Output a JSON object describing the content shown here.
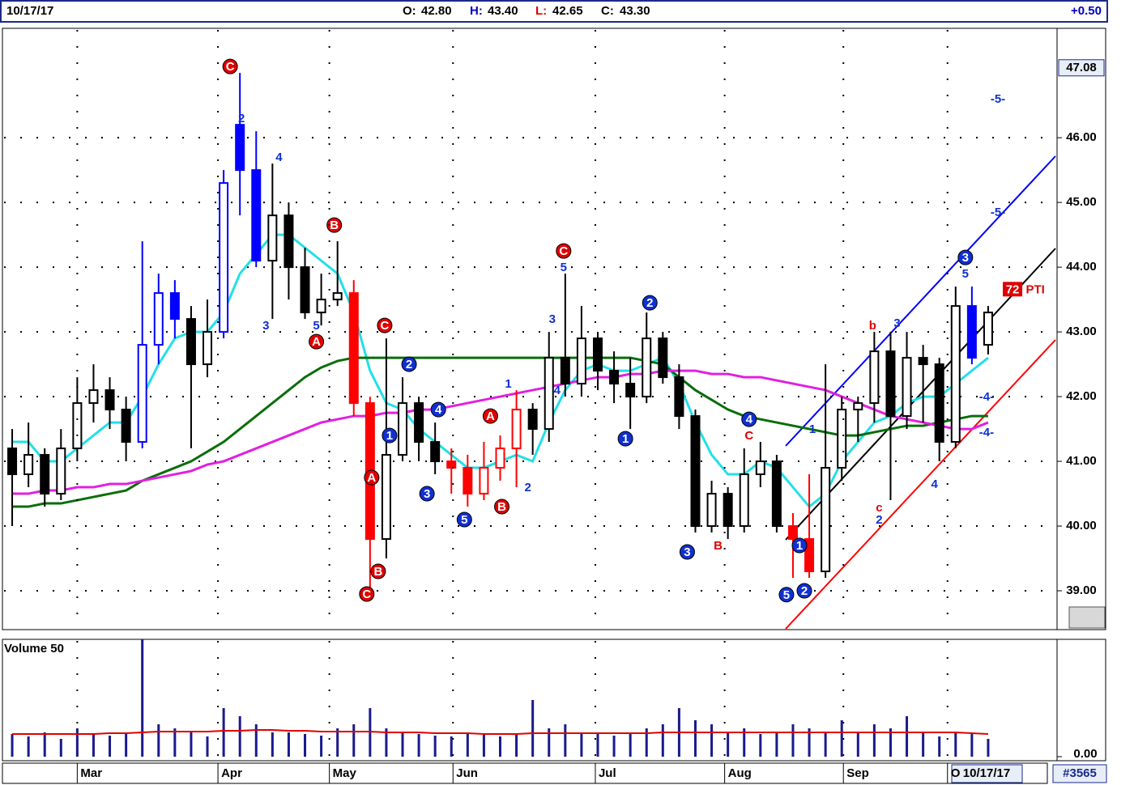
{
  "header": {
    "date": "10/17/17",
    "items": [
      {
        "label": "O:",
        "value": "42.80"
      },
      {
        "label": "H:",
        "value": "43.40"
      },
      {
        "label": "L:",
        "value": "42.65"
      },
      {
        "label": "C:",
        "value": "43.30"
      }
    ],
    "change": "+0.50"
  },
  "footer": {
    "date": "10/17/17",
    "count": "#3565"
  },
  "chart_data": [
    {
      "type": "candlestick",
      "xlim": [
        -0.6,
        60.6
      ],
      "ylim": [
        38.4,
        47.69
      ],
      "yticks": [
        {
          "value": 39,
          "label": "39.00"
        },
        {
          "value": 40,
          "label": "40.00"
        },
        {
          "value": 41,
          "label": "41.00"
        },
        {
          "value": 42,
          "label": "42.00"
        },
        {
          "value": 43,
          "label": "43.00"
        },
        {
          "value": 44,
          "label": "44.00"
        },
        {
          "value": 45,
          "label": "45.00"
        },
        {
          "value": 46,
          "label": "46.00"
        }
      ],
      "price_marker": {
        "value": 47.08,
        "label": "47.08"
      },
      "grid": true,
      "open": [
        41.2,
        40.8,
        41.1,
        40.5,
        41.2,
        41.9,
        42.1,
        41.8,
        41.3,
        42.8,
        43.6,
        43.2,
        42.5,
        43.0,
        46.2,
        45.5,
        44.1,
        44.8,
        44.0,
        43.3,
        43.5,
        43.6,
        41.9,
        39.8,
        41.1,
        41.9,
        41.3,
        41.0,
        40.9,
        40.5,
        40.9,
        41.2,
        41.8,
        41.5,
        42.6,
        42.2,
        42.9,
        42.4,
        42.2,
        42.0,
        42.9,
        42.3,
        41.7,
        40.0,
        40.5,
        40.0,
        40.8,
        41.0,
        40.0,
        39.8,
        39.3,
        40.9,
        41.8,
        41.9,
        42.7,
        41.7,
        42.6,
        42.5,
        41.3,
        43.4,
        42.8
      ],
      "high": [
        41.5,
        41.6,
        41.2,
        41.5,
        42.3,
        42.5,
        42.3,
        42.0,
        44.4,
        43.9,
        43.8,
        43.4,
        43.5,
        45.5,
        47.0,
        46.1,
        45.6,
        45.0,
        44.3,
        43.9,
        44.4,
        43.8,
        42.0,
        42.9,
        42.3,
        42.0,
        41.6,
        41.2,
        41.1,
        41.3,
        41.4,
        42.1,
        41.9,
        43.0,
        43.9,
        43.4,
        43.0,
        42.7,
        42.6,
        43.3,
        43.0,
        42.5,
        41.8,
        40.7,
        40.6,
        41.2,
        41.3,
        41.1,
        40.2,
        40.8,
        42.5,
        42.0,
        42.0,
        43.0,
        43.0,
        43.0,
        42.8,
        42.6,
        43.7,
        43.7,
        43.4
      ],
      "low": [
        40.0,
        40.6,
        40.3,
        40.4,
        41.0,
        41.6,
        41.5,
        41.0,
        41.2,
        42.5,
        42.9,
        41.2,
        42.3,
        42.9,
        44.8,
        44.0,
        43.2,
        43.5,
        43.2,
        43.1,
        43.4,
        41.7,
        39.0,
        39.5,
        41.0,
        41.0,
        40.8,
        40.5,
        40.3,
        40.4,
        40.7,
        40.6,
        41.1,
        41.3,
        42.0,
        42.0,
        42.1,
        41.9,
        41.5,
        41.9,
        42.2,
        41.5,
        39.9,
        39.9,
        39.8,
        39.9,
        40.6,
        39.9,
        39.2,
        39.2,
        39.2,
        40.7,
        41.3,
        41.6,
        40.4,
        41.5,
        41.6,
        41.0,
        41.2,
        42.5,
        42.65
      ],
      "close": [
        40.8,
        41.1,
        40.5,
        41.2,
        41.9,
        42.1,
        41.8,
        41.3,
        42.8,
        43.6,
        43.2,
        42.5,
        43.0,
        45.3,
        45.5,
        44.1,
        44.8,
        44.0,
        43.3,
        43.5,
        43.6,
        41.9,
        39.8,
        41.1,
        41.9,
        41.3,
        41.0,
        40.9,
        40.5,
        40.9,
        41.2,
        41.8,
        41.5,
        42.6,
        42.2,
        42.9,
        42.4,
        42.2,
        42.0,
        42.9,
        42.3,
        41.7,
        40.0,
        40.5,
        40.0,
        40.8,
        41.0,
        40.0,
        39.8,
        39.3,
        40.9,
        41.8,
        41.9,
        42.7,
        41.7,
        42.6,
        42.5,
        41.3,
        43.4,
        42.6,
        43.3
      ],
      "colors": [
        "#000000",
        "#000000",
        "#000000",
        "#000000",
        "#000000",
        "#000000",
        "#000000",
        "#000000",
        "#0000ff",
        "#0000ff",
        "#0000ff",
        "#000000",
        "#000000",
        "#0000ff",
        "#0000ff",
        "#0000ff",
        "#000000",
        "#000000",
        "#000000",
        "#000000",
        "#000000",
        "#ff0000",
        "#ff0000",
        "#000000",
        "#000000",
        "#000000",
        "#000000",
        "#ff0000",
        "#ff0000",
        "#ff0000",
        "#ff0000",
        "#ff0000",
        "#000000",
        "#000000",
        "#000000",
        "#000000",
        "#000000",
        "#000000",
        "#000000",
        "#000000",
        "#000000",
        "#000000",
        "#000000",
        "#000000",
        "#000000",
        "#000000",
        "#000000",
        "#000000",
        "#ff0000",
        "#ff0000",
        "#000000",
        "#000000",
        "#000000",
        "#000000",
        "#000000",
        "#000000",
        "#000000",
        "#000000",
        "#000000",
        "#0000ff",
        "#000000"
      ],
      "lines": [
        {
          "color": "#22e0e8",
          "values": [
            41.3,
            41.3,
            41.0,
            41.0,
            41.2,
            41.4,
            41.6,
            41.6,
            42.0,
            42.5,
            42.9,
            43.0,
            43.0,
            43.3,
            43.9,
            44.2,
            44.5,
            44.5,
            44.3,
            44.1,
            43.9,
            43.3,
            42.4,
            41.9,
            41.8,
            41.5,
            41.3,
            41.1,
            40.9,
            40.9,
            41.0,
            41.1,
            41.0,
            41.6,
            42.1,
            42.4,
            42.5,
            42.4,
            42.4,
            42.5,
            42.6,
            42.2,
            41.6,
            41.1,
            40.8,
            40.8,
            41.0,
            40.9,
            40.6,
            40.3,
            40.5,
            41.0,
            41.3,
            41.6,
            41.7,
            41.9,
            42.0,
            42.0,
            42.2,
            42.4,
            42.6
          ]
        },
        {
          "color": "#0a6e0a",
          "values": [
            40.3,
            40.3,
            40.35,
            40.35,
            40.4,
            40.45,
            40.5,
            40.55,
            40.7,
            40.8,
            40.9,
            41.0,
            41.15,
            41.3,
            41.5,
            41.7,
            41.9,
            42.1,
            42.3,
            42.45,
            42.55,
            42.6,
            42.6,
            42.6,
            42.6,
            42.6,
            42.6,
            42.6,
            42.6,
            42.6,
            42.6,
            42.6,
            42.6,
            42.6,
            42.6,
            42.6,
            42.6,
            42.6,
            42.6,
            42.55,
            42.5,
            42.3,
            42.1,
            41.95,
            41.8,
            41.7,
            41.65,
            41.6,
            41.55,
            41.5,
            41.45,
            41.4,
            41.4,
            41.45,
            41.5,
            41.55,
            41.55,
            41.6,
            41.65,
            41.7,
            41.7
          ]
        },
        {
          "color": "#e020e0",
          "values": [
            40.5,
            40.5,
            40.55,
            40.55,
            40.6,
            40.6,
            40.65,
            40.65,
            40.7,
            40.75,
            40.8,
            40.85,
            40.95,
            41.0,
            41.1,
            41.2,
            41.3,
            41.4,
            41.5,
            41.6,
            41.65,
            41.7,
            41.7,
            41.75,
            41.75,
            41.8,
            41.8,
            41.85,
            41.9,
            41.95,
            42.0,
            42.05,
            42.1,
            42.15,
            42.2,
            42.25,
            42.3,
            42.3,
            42.35,
            42.35,
            42.4,
            42.4,
            42.4,
            42.35,
            42.35,
            42.3,
            42.3,
            42.25,
            42.2,
            42.15,
            42.1,
            42.0,
            41.9,
            41.8,
            41.7,
            41.65,
            41.6,
            41.55,
            41.5,
            41.5,
            41.6
          ]
        }
      ],
      "annotations": [
        {
          "text": "C",
          "style": "red-circle",
          "x": 13.4,
          "y": 47.1
        },
        {
          "text": "2",
          "style": "blue",
          "x": 14.1,
          "y": 46.3
        },
        {
          "text": "4",
          "style": "blue",
          "x": 16.4,
          "y": 45.7
        },
        {
          "text": "3",
          "style": "blue",
          "x": 15.6,
          "y": 43.1
        },
        {
          "text": "5",
          "style": "blue",
          "x": 18.7,
          "y": 43.1
        },
        {
          "text": "A",
          "style": "red-circle",
          "x": 18.7,
          "y": 42.85
        },
        {
          "text": "B",
          "style": "red-circle",
          "x": 19.8,
          "y": 44.65
        },
        {
          "text": "C",
          "style": "red-circle",
          "x": 22.9,
          "y": 43.1
        },
        {
          "text": "2",
          "style": "blue-circle",
          "x": 24.4,
          "y": 42.5
        },
        {
          "text": "1",
          "style": "blue-circle",
          "x": 23.2,
          "y": 41.4
        },
        {
          "text": "4",
          "style": "blue-circle",
          "x": 26.2,
          "y": 41.8
        },
        {
          "text": "3",
          "style": "blue-circle",
          "x": 25.5,
          "y": 40.5
        },
        {
          "text": "5",
          "style": "blue-circle",
          "x": 27.8,
          "y": 40.1
        },
        {
          "text": "A",
          "style": "red-circle",
          "x": 29.4,
          "y": 41.7
        },
        {
          "text": "B",
          "style": "red-circle",
          "x": 30.1,
          "y": 40.3
        },
        {
          "text": "A",
          "style": "red-circle",
          "x": 22.1,
          "y": 40.75
        },
        {
          "text": "B",
          "style": "red-circle",
          "x": 22.5,
          "y": 39.3
        },
        {
          "text": "C",
          "style": "red-circle",
          "x": 21.8,
          "y": 38.95
        },
        {
          "text": "C",
          "style": "red-circle",
          "x": 33.9,
          "y": 44.25
        },
        {
          "text": "5",
          "style": "blue",
          "x": 33.9,
          "y": 44.0
        },
        {
          "text": "3",
          "style": "blue",
          "x": 33.2,
          "y": 43.2
        },
        {
          "text": "4",
          "style": "blue",
          "x": 33.5,
          "y": 42.1
        },
        {
          "text": "1",
          "style": "blue",
          "x": 30.5,
          "y": 42.2
        },
        {
          "text": "2",
          "style": "blue",
          "x": 31.7,
          "y": 40.6
        },
        {
          "text": "2",
          "style": "blue-circle",
          "x": 39.2,
          "y": 43.45
        },
        {
          "text": "1",
          "style": "blue-circle",
          "x": 37.7,
          "y": 41.35
        },
        {
          "text": "3",
          "style": "blue-circle",
          "x": 41.5,
          "y": 39.6
        },
        {
          "text": "B",
          "style": "red",
          "x": 43.4,
          "y": 39.7
        },
        {
          "text": "4",
          "style": "blue-circle",
          "x": 45.3,
          "y": 41.65
        },
        {
          "text": "C",
          "style": "red",
          "x": 45.3,
          "y": 41.4
        },
        {
          "text": "5",
          "style": "blue-circle",
          "x": 47.6,
          "y": 38.94
        },
        {
          "text": "2",
          "style": "blue-circle",
          "x": 48.7,
          "y": 39.0
        },
        {
          "text": "1",
          "style": "blue-circle",
          "x": 48.4,
          "y": 39.7
        },
        {
          "text": "1",
          "style": "blue",
          "x": 49.2,
          "y": 41.5
        },
        {
          "text": "b",
          "style": "red",
          "x": 52.9,
          "y": 43.1
        },
        {
          "text": "3",
          "style": "blue",
          "x": 54.4,
          "y": 43.14
        },
        {
          "text": "c",
          "style": "red",
          "x": 53.3,
          "y": 40.29
        },
        {
          "text": "2",
          "style": "blue",
          "x": 53.3,
          "y": 40.1
        },
        {
          "text": "4",
          "style": "blue",
          "x": 56.7,
          "y": 40.65
        },
        {
          "text": "3",
          "style": "blue-circle",
          "x": 58.6,
          "y": 44.15
        },
        {
          "text": "5",
          "style": "blue",
          "x": 58.6,
          "y": 43.9
        },
        {
          "text": "-5-",
          "style": "blue",
          "x": 60.6,
          "y": 46.6
        },
        {
          "text": "-5-",
          "style": "blue",
          "x": 60.6,
          "y": 44.85
        },
        {
          "text": "-4-",
          "style": "blue",
          "x": 59.9,
          "y": 42.0
        },
        {
          "text": "-4-",
          "style": "blue",
          "x": 59.9,
          "y": 41.45
        },
        {
          "text": "72",
          "style": "red-box",
          "x": 61.5,
          "y": 43.66
        },
        {
          "text": "PTI",
          "style": "red",
          "x": 62.9,
          "y": 43.66
        }
      ]
    },
    {
      "type": "bar",
      "title": "Volume 50",
      "xlim": [
        -0.6,
        60.6
      ],
      "ylim": [
        0,
        145
      ],
      "yticks": [
        {
          "value": 0,
          "label": "0.00"
        }
      ],
      "xticks": [
        {
          "value": 4,
          "label": "Mar"
        },
        {
          "value": 12.65,
          "label": "Apr"
        },
        {
          "value": 19.5,
          "label": "May"
        },
        {
          "value": 27.1,
          "label": "Jun"
        },
        {
          "value": 35.85,
          "label": "Jul"
        },
        {
          "value": 43.8,
          "label": "Aug"
        },
        {
          "value": 51.1,
          "label": "Sep"
        },
        {
          "value": 57.5,
          "label": "O"
        }
      ],
      "color": "#1a1a8c",
      "values": [
        28,
        25,
        30,
        22,
        35,
        28,
        26,
        30,
        145,
        40,
        35,
        30,
        25,
        60,
        50,
        40,
        30,
        30,
        28,
        26,
        35,
        40,
        60,
        35,
        30,
        28,
        26,
        25,
        30,
        28,
        25,
        27,
        70,
        35,
        40,
        30,
        28,
        26,
        30,
        35,
        40,
        60,
        45,
        40,
        30,
        35,
        28,
        30,
        40,
        35,
        30,
        45,
        30,
        40,
        35,
        50,
        30,
        25,
        30,
        28,
        22
      ],
      "line": {
        "color": "#e00000",
        "values": [
          28,
          28,
          28,
          28,
          28,
          28,
          29,
          29,
          30,
          31,
          31,
          31,
          31,
          32,
          32,
          33,
          33,
          32,
          32,
          31,
          31,
          31,
          31,
          30,
          30,
          30,
          29,
          29,
          29,
          28,
          28,
          28,
          29,
          29,
          29,
          29,
          29,
          29,
          29,
          29,
          30,
          30,
          30,
          30,
          30,
          30,
          30,
          30,
          30,
          30,
          30,
          30,
          30,
          30,
          30,
          30,
          30,
          30,
          30,
          29,
          28
        ]
      }
    }
  ]
}
